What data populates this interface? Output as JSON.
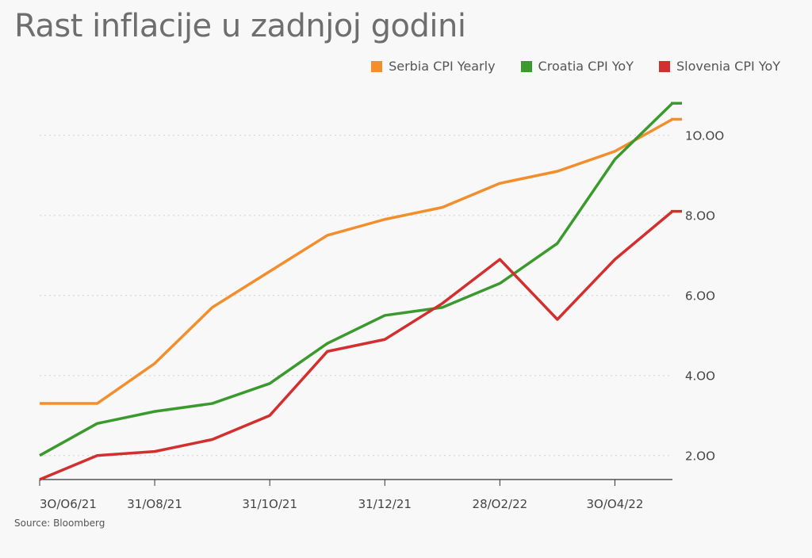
{
  "title": "Rast inflacije u zadnjoj godini",
  "source": "Source: Bloomberg",
  "chart_data": {
    "type": "line",
    "title": "Rast inflacije u zadnjoj godini",
    "xlabel": "",
    "ylabel": "",
    "x": [
      "30/06/21",
      "31/07/21",
      "31/08/21",
      "30/09/21",
      "31/10/21",
      "30/11/21",
      "31/12/21",
      "31/01/22",
      "28/02/22",
      "31/03/22",
      "30/04/22",
      "31/05/22"
    ],
    "x_tick_labels": [
      "3O/O6/21",
      "31/O8/21",
      "31/1O/21",
      "31/12/21",
      "28/O2/22",
      "3O/O4/22"
    ],
    "x_tick_indices": [
      0,
      2,
      4,
      6,
      8,
      10
    ],
    "y_tick_labels": [
      "2.OO",
      "4.OO",
      "6.OO",
      "8.OO",
      "1O.OO"
    ],
    "y_ticks": [
      2,
      4,
      6,
      8,
      10
    ],
    "ylim": [
      1.4,
      11.4
    ],
    "grid": "horizontal dotted",
    "legend_position": "top-right",
    "series": [
      {
        "name": "Serbia CPI Yearly",
        "color": "#f28e2b",
        "values": [
          3.3,
          3.3,
          4.3,
          5.7,
          6.6,
          7.5,
          7.9,
          8.2,
          8.8,
          9.1,
          9.6,
          10.4
        ]
      },
      {
        "name": "Croatia CPI YoY",
        "color": "#3a9a2d",
        "values": [
          2.0,
          2.8,
          3.1,
          3.3,
          3.8,
          4.8,
          5.5,
          5.7,
          6.3,
          7.3,
          9.4,
          10.8
        ]
      },
      {
        "name": "Slovenia CPI YoY",
        "color": "#d32f2f",
        "values": [
          1.4,
          2.0,
          2.1,
          2.4,
          3.0,
          4.6,
          4.9,
          5.8,
          6.9,
          5.4,
          6.9,
          8.1
        ]
      }
    ]
  }
}
